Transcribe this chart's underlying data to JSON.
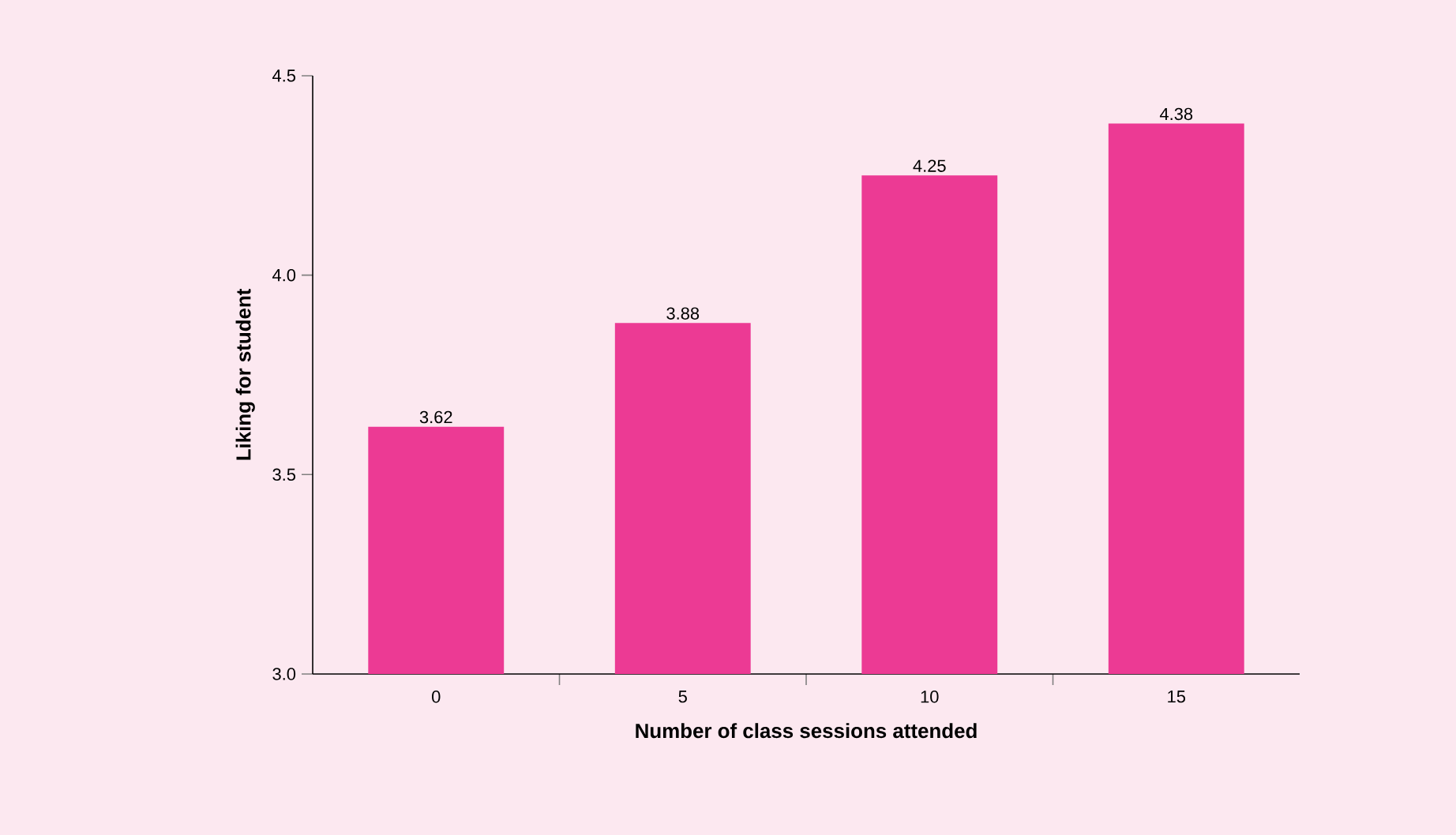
{
  "chart_data": {
    "type": "bar",
    "xlabel": "Number of class sessions attended",
    "ylabel": "Liking for student",
    "categories": [
      "0",
      "5",
      "10",
      "15"
    ],
    "values": [
      3.62,
      3.88,
      4.25,
      4.38
    ],
    "color": "#ec3a94",
    "ylim": [
      3.0,
      4.5
    ],
    "yticks": [
      {
        "value": 3.0,
        "label": "3.0"
      },
      {
        "value": 3.5,
        "label": "3.5"
      },
      {
        "value": 4.0,
        "label": "4.0"
      },
      {
        "value": 4.5,
        "label": "4.5"
      }
    ],
    "data_labels": true
  }
}
